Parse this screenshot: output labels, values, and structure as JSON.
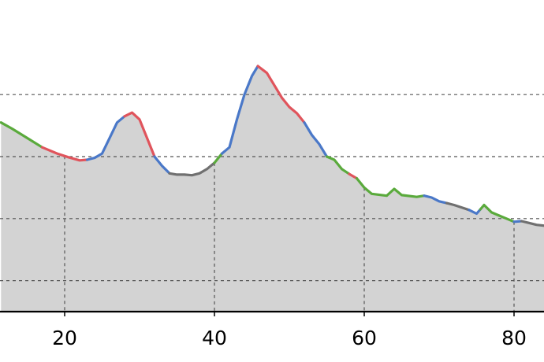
{
  "chart_data": {
    "type": "area",
    "title": "",
    "xlabel": "",
    "ylabel": "",
    "xlim": [
      11.5,
      84.5
    ],
    "ylim": [
      0,
      29
    ],
    "x_ticks": [
      20,
      40,
      60,
      80
    ],
    "x_tick_labels": [
      "20",
      "40",
      "60",
      "80"
    ],
    "y_grid_lines": [
      5,
      15,
      25,
      35
    ],
    "grid": true,
    "legend": "none",
    "fill_color": "#d3d3d3",
    "segment_colors": {
      "green": "#5aaa3c",
      "red": "#e0545c",
      "blue": "#4a78c8",
      "gray": "#707070"
    },
    "segments": [
      {
        "color": "green",
        "points": [
          [
            11.5,
            30.5
          ],
          [
            13,
            29.5
          ],
          [
            15,
            28.0
          ],
          [
            17,
            26.5
          ]
        ]
      },
      {
        "color": "red",
        "points": [
          [
            17,
            26.5
          ],
          [
            19,
            25.5
          ],
          [
            20.5,
            24.9
          ],
          [
            22,
            24.4
          ],
          [
            23,
            24.5
          ]
        ]
      },
      {
        "color": "blue",
        "points": [
          [
            23,
            24.5
          ],
          [
            24,
            24.8
          ],
          [
            25,
            25.5
          ],
          [
            26,
            28.0
          ],
          [
            27,
            30.5
          ],
          [
            28,
            31.5
          ]
        ]
      },
      {
        "color": "red",
        "points": [
          [
            28,
            31.5
          ],
          [
            29,
            32.1
          ],
          [
            30,
            31.0
          ],
          [
            31,
            28.0
          ],
          [
            32,
            25.0
          ]
        ]
      },
      {
        "color": "blue",
        "points": [
          [
            32,
            25.0
          ],
          [
            33,
            23.5
          ],
          [
            34,
            22.3
          ]
        ]
      },
      {
        "color": "gray",
        "points": [
          [
            34,
            22.3
          ],
          [
            35,
            22.1
          ],
          [
            36,
            22.1
          ],
          [
            37,
            22.0
          ],
          [
            38,
            22.3
          ],
          [
            39,
            23.0
          ],
          [
            40,
            24.0
          ]
        ]
      },
      {
        "color": "green",
        "points": [
          [
            40,
            24.0
          ],
          [
            41,
            25.5
          ]
        ]
      },
      {
        "color": "blue",
        "points": [
          [
            41,
            25.5
          ],
          [
            42,
            26.5
          ],
          [
            43,
            31.0
          ],
          [
            44,
            35.0
          ],
          [
            45,
            38.0
          ],
          [
            45.8,
            39.6
          ]
        ]
      },
      {
        "color": "red",
        "points": [
          [
            45.8,
            39.6
          ],
          [
            47,
            38.5
          ],
          [
            48,
            36.5
          ],
          [
            49,
            34.5
          ],
          [
            50,
            33.0
          ],
          [
            51,
            32.0
          ],
          [
            52,
            30.5
          ]
        ]
      },
      {
        "color": "blue",
        "points": [
          [
            52,
            30.5
          ],
          [
            53,
            28.5
          ],
          [
            54,
            27.0
          ],
          [
            55,
            25.0
          ]
        ]
      },
      {
        "color": "green",
        "points": [
          [
            55,
            25.0
          ],
          [
            56,
            24.5
          ],
          [
            57,
            23.0
          ],
          [
            58,
            22.2
          ]
        ]
      },
      {
        "color": "red",
        "points": [
          [
            58,
            22.2
          ],
          [
            59,
            21.5
          ]
        ]
      },
      {
        "color": "green",
        "points": [
          [
            59,
            21.5
          ],
          [
            60,
            20.0
          ],
          [
            61,
            19.0
          ],
          [
            63,
            18.7
          ],
          [
            64,
            19.8
          ],
          [
            65,
            18.8
          ],
          [
            67,
            18.5
          ],
          [
            68,
            18.7
          ]
        ]
      },
      {
        "color": "blue",
        "points": [
          [
            68,
            18.7
          ],
          [
            69,
            18.4
          ],
          [
            70,
            17.8
          ],
          [
            71,
            17.5
          ]
        ]
      },
      {
        "color": "gray",
        "points": [
          [
            71,
            17.5
          ],
          [
            72,
            17.2
          ],
          [
            73,
            16.8
          ],
          [
            74,
            16.4
          ]
        ]
      },
      {
        "color": "blue",
        "points": [
          [
            74,
            16.4
          ],
          [
            75,
            15.8
          ],
          [
            75.5,
            16.5
          ]
        ]
      },
      {
        "color": "green",
        "points": [
          [
            75.5,
            16.5
          ],
          [
            76,
            17.2
          ],
          [
            77,
            16.0
          ],
          [
            78,
            15.5
          ],
          [
            79,
            15.0
          ],
          [
            80,
            14.5
          ]
        ]
      },
      {
        "color": "blue",
        "points": [
          [
            80,
            14.5
          ],
          [
            81,
            14.6
          ]
        ]
      },
      {
        "color": "gray",
        "points": [
          [
            81,
            14.6
          ],
          [
            82,
            14.3
          ],
          [
            83,
            14.0
          ],
          [
            84.5,
            13.8
          ]
        ]
      }
    ]
  }
}
